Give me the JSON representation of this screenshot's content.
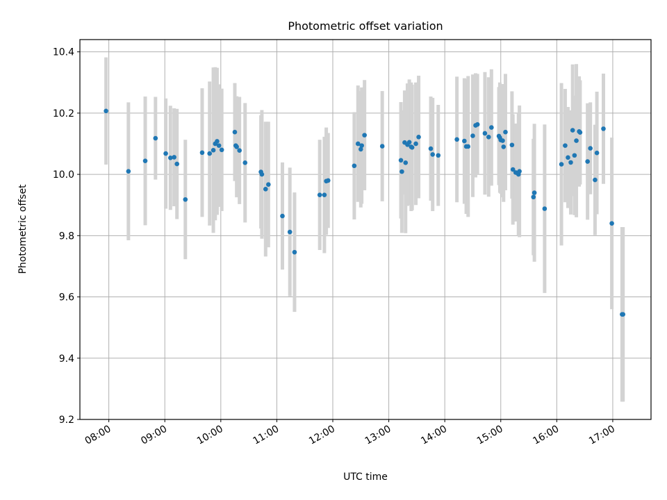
{
  "chart_data": {
    "type": "scatter",
    "title": "Photometric offset variation",
    "xlabel": "UTC time",
    "ylabel": "Photometric offset",
    "ylim": [
      9.2,
      10.44
    ],
    "xlim": [
      "07:29",
      "17:41"
    ],
    "grid": true,
    "yticks": [
      9.2,
      9.4,
      9.6,
      9.8,
      10.0,
      10.2,
      10.4
    ],
    "xticks": [
      "08:00",
      "09:00",
      "10:00",
      "11:00",
      "12:00",
      "13:00",
      "14:00",
      "15:00",
      "16:00",
      "17:00"
    ],
    "colors": {
      "points": "#1f77b4",
      "errorbars": "#d3d3d3"
    },
    "series": [
      {
        "x": [
          "07:57",
          "08:21",
          "08:39",
          "08:50",
          "09:01",
          "09:06",
          "09:10",
          "09:13",
          "09:22",
          "09:40",
          "09:48",
          "09:52",
          "09:54",
          "09:56",
          "09:58",
          "10:01",
          "10:15",
          "10:16",
          "10:17",
          "10:20",
          "10:26",
          "10:43",
          "10:44",
          "10:48",
          "10:51",
          "11:06",
          "11:14",
          "11:19",
          "11:46",
          "11:51",
          "11:53",
          "11:55",
          "12:23",
          "12:27",
          "12:30",
          "12:31",
          "12:34",
          "12:53",
          "13:13",
          "13:14",
          "13:17",
          "13:18",
          "13:20",
          "13:22",
          "13:24",
          "13:25",
          "13:29",
          "13:32",
          "13:45",
          "13:47",
          "13:53",
          "14:13",
          "14:21",
          "14:23",
          "14:25",
          "14:30",
          "14:33",
          "14:35",
          "14:43",
          "14:47",
          "14:50",
          "14:58",
          "14:59",
          "15:00",
          "15:02",
          "15:03",
          "15:05",
          "15:12",
          "15:13",
          "15:16",
          "15:18",
          "15:19",
          "15:20",
          "15:35",
          "15:36",
          "15:47",
          "16:05",
          "16:09",
          "16:12",
          "16:15",
          "16:17",
          "16:19",
          "16:21",
          "16:24",
          "16:25",
          "16:33",
          "16:36",
          "16:41",
          "16:43",
          "16:50",
          "16:59",
          "17:10",
          "17:11"
        ],
        "y": [
          10.207,
          10.01,
          10.044,
          10.118,
          10.068,
          10.054,
          10.056,
          10.034,
          9.918,
          10.071,
          10.068,
          10.079,
          10.1,
          10.108,
          10.094,
          10.08,
          10.138,
          10.094,
          10.09,
          10.078,
          10.038,
          10.008,
          10.0,
          9.952,
          9.967,
          9.864,
          9.812,
          9.746,
          9.933,
          9.933,
          9.978,
          9.98,
          10.028,
          10.1,
          10.082,
          10.094,
          10.128,
          10.092,
          10.046,
          10.009,
          10.104,
          10.038,
          10.097,
          10.105,
          10.09,
          10.088,
          10.1,
          10.122,
          10.084,
          10.065,
          10.062,
          10.114,
          10.109,
          10.091,
          10.091,
          10.126,
          10.16,
          10.163,
          10.134,
          10.122,
          10.153,
          10.125,
          10.12,
          10.112,
          10.11,
          10.09,
          10.138,
          10.096,
          10.016,
          10.006,
          10.004,
          10.0,
          10.01,
          9.926,
          9.94,
          9.888,
          10.033,
          10.094,
          10.055,
          10.039,
          10.144,
          10.062,
          10.11,
          10.14,
          10.137,
          10.042,
          10.085,
          9.982,
          10.07,
          10.149,
          9.84,
          9.543,
          9.543
        ],
        "yerr": [
          0.175,
          0.225,
          0.21,
          0.135,
          0.18,
          0.17,
          0.16,
          0.18,
          0.195,
          0.21,
          0.235,
          0.27,
          0.25,
          0.24,
          0.2,
          0.2,
          0.16,
          0.115,
          0.165,
          0.175,
          0.195,
          0.185,
          0.21,
          0.22,
          0.205,
          0.175,
          0.21,
          0.195,
          0.18,
          0.19,
          0.175,
          0.155,
          0.175,
          0.19,
          0.19,
          0.19,
          0.18,
          0.18,
          0.19,
          0.2,
          0.17,
          0.23,
          0.2,
          0.205,
          0.21,
          0.205,
          0.2,
          0.2,
          0.17,
          0.185,
          0.165,
          0.205,
          0.205,
          0.22,
          0.23,
          0.2,
          0.17,
          0.165,
          0.2,
          0.195,
          0.19,
          0.16,
          0.18,
          0.175,
          0.185,
          0.18,
          0.19,
          0.175,
          0.18,
          0.16,
          0.15,
          0.2,
          0.215,
          0.19,
          0.225,
          0.275,
          0.265,
          0.185,
          0.165,
          0.17,
          0.215,
          0.195,
          0.25,
          0.18,
          0.17,
          0.19,
          0.15,
          0.18,
          0.2,
          0.18,
          0.28,
          0.285,
          0.285
        ]
      }
    ]
  }
}
